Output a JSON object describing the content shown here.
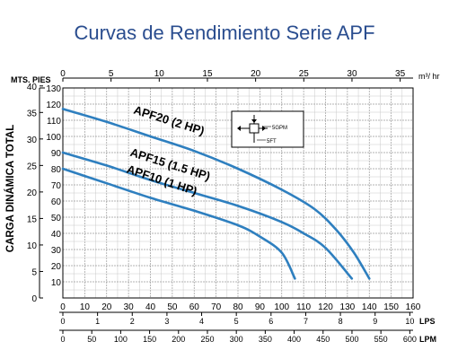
{
  "chart_data": {
    "type": "line",
    "title": "Curvas de Rendimiento Serie APF",
    "ylabel": "CARGA DINÁMICA TOTAL",
    "units": {
      "mts_pies": "MTS. PIES",
      "m3_hr": "m³/ hr",
      "lps": "LPS",
      "lpm": "LPM"
    },
    "xlim_gpm": [
      0,
      160
    ],
    "ylim_pies": [
      0,
      130
    ],
    "ticks": {
      "gpm": [
        "0",
        "10",
        "20",
        "30",
        "40",
        "50",
        "60",
        "70",
        "80",
        "90",
        "100",
        "110",
        "120",
        "130",
        "140",
        "150",
        "160"
      ],
      "pies": [
        "10",
        "20",
        "30",
        "40",
        "50",
        "60",
        "70",
        "80",
        "90",
        "100",
        "110",
        "120",
        "130"
      ],
      "mts": [
        "0",
        "5",
        "10",
        "15",
        "20",
        "25",
        "30",
        "35",
        "40"
      ],
      "m3hr": [
        "0",
        "5",
        "10",
        "15",
        "20",
        "25",
        "30",
        "35"
      ],
      "lps": [
        "0",
        "1",
        "2",
        "3",
        "4",
        "5",
        "6",
        "7",
        "8",
        "9",
        "10"
      ],
      "lpm": [
        "0",
        "50",
        "100",
        "150",
        "200",
        "250",
        "300",
        "350",
        "400",
        "450",
        "500",
        "550",
        "600"
      ]
    },
    "series": [
      {
        "name": "APF20 (2 HP)",
        "x": [
          0,
          20,
          40,
          60,
          80,
          100,
          115,
          125,
          133,
          140
        ],
        "y": [
          117,
          109,
          100,
          91,
          80,
          67,
          55,
          42,
          28,
          12
        ]
      },
      {
        "name": "APF15 (1.5 HP)",
        "x": [
          0,
          20,
          40,
          60,
          80,
          100,
          110,
          120,
          132
        ],
        "y": [
          90,
          82,
          73,
          65,
          57,
          47,
          40,
          31,
          12
        ]
      },
      {
        "name": "APF10 (1 HP)",
        "x": [
          0,
          20,
          40,
          60,
          80,
          90,
          100,
          106
        ],
        "y": [
          80,
          71,
          62,
          54,
          45,
          38,
          28,
          12
        ]
      }
    ],
    "inset": {
      "label_gpm": "5GPM",
      "label_ft": "5FT"
    },
    "grid": true,
    "line_color": "#2e7fbf"
  }
}
